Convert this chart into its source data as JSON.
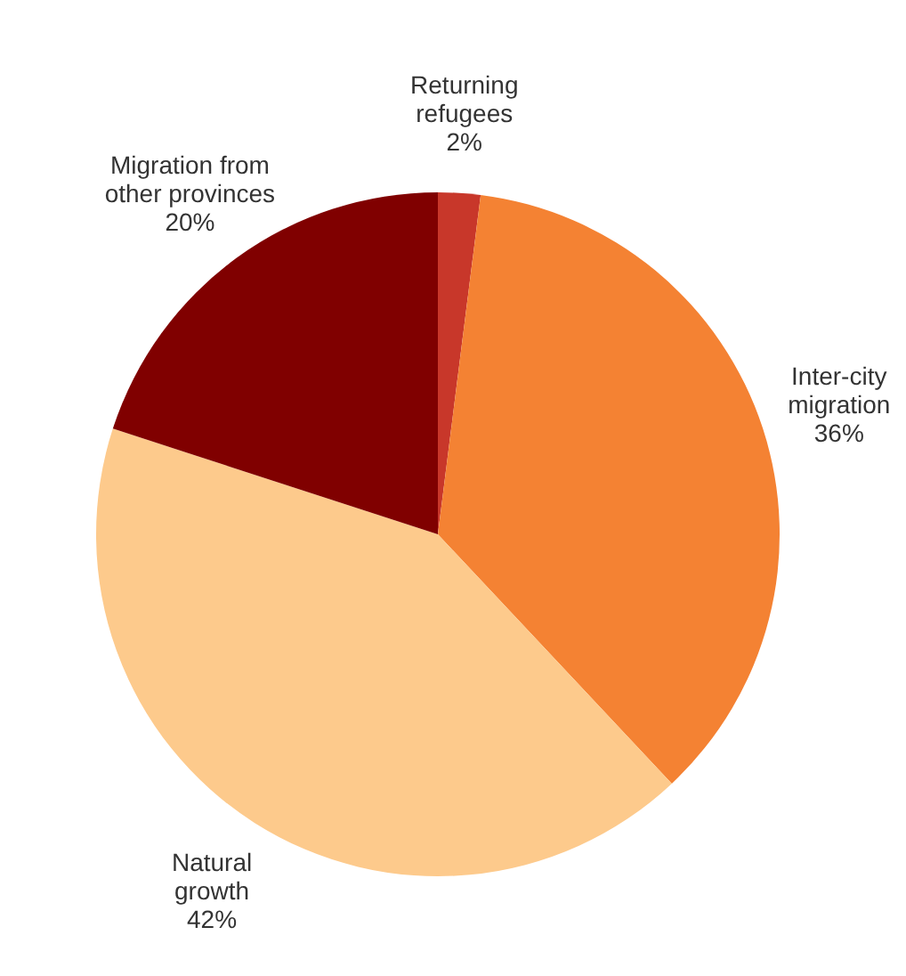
{
  "chart_data": {
    "type": "pie",
    "categories": [
      "Returning\nrefugees",
      "Inter-city\nmigration",
      "Natural\ngrowth",
      "Migration from\nother provinces"
    ],
    "values": [
      2,
      36,
      42,
      20
    ],
    "value_labels": [
      "2%",
      "36%",
      "42%",
      "20%"
    ],
    "colors": [
      "#c8372a",
      "#f48233",
      "#fdca8c",
      "#800000"
    ]
  }
}
